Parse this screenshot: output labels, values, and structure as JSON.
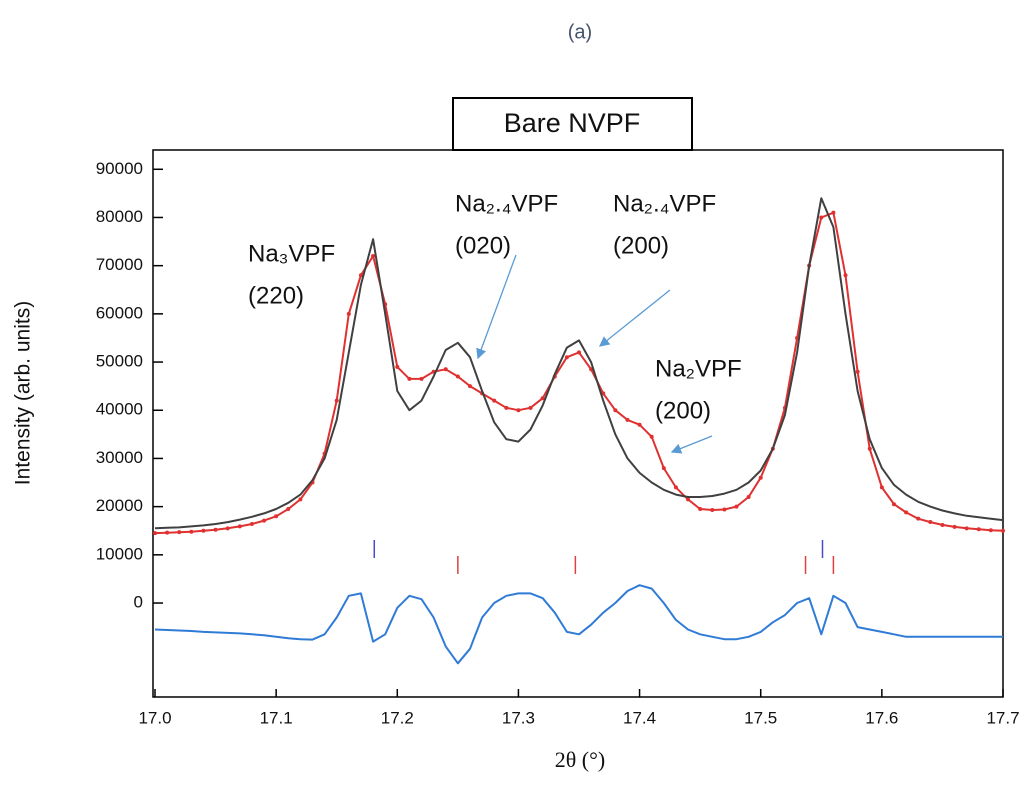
{
  "chart_data": {
    "type": "line",
    "heading": "(a)",
    "title": "Bare NVPF",
    "xlabel": "2θ (°)",
    "ylabel": "Intensity (arb. units)",
    "xlim": [
      17.0,
      17.7
    ],
    "ylim": [
      -19500,
      94000
    ],
    "xticks": [
      {
        "value": 17.0,
        "label": "17.0"
      },
      17.1,
      17.2,
      17.3,
      17.4,
      17.5,
      17.6,
      17.7
    ],
    "yticks": [
      0,
      10000,
      20000,
      30000,
      40000,
      50000,
      60000,
      70000,
      80000,
      90000
    ],
    "x": [
      17.0,
      17.01,
      17.02,
      17.03,
      17.04,
      17.05,
      17.06,
      17.07,
      17.08,
      17.09,
      17.1,
      17.11,
      17.12,
      17.13,
      17.14,
      17.15,
      17.16,
      17.17,
      17.18,
      17.19,
      17.2,
      17.21,
      17.22,
      17.23,
      17.24,
      17.25,
      17.26,
      17.27,
      17.28,
      17.29,
      17.3,
      17.31,
      17.32,
      17.33,
      17.34,
      17.35,
      17.36,
      17.37,
      17.38,
      17.39,
      17.4,
      17.41,
      17.42,
      17.43,
      17.44,
      17.45,
      17.46,
      17.47,
      17.48,
      17.49,
      17.5,
      17.51,
      17.52,
      17.53,
      17.54,
      17.55,
      17.56,
      17.57,
      17.58,
      17.59,
      17.6,
      17.61,
      17.62,
      17.63,
      17.64,
      17.65,
      17.66,
      17.67,
      17.68,
      17.69,
      17.7
    ],
    "series": [
      {
        "color": "#e03030",
        "markers": true,
        "values": [
          14500,
          14600,
          14700,
          14800,
          15000,
          15200,
          15500,
          15900,
          16400,
          17100,
          18000,
          19500,
          21500,
          25000,
          31000,
          42000,
          60000,
          68000,
          72000,
          62000,
          49000,
          46500,
          46500,
          48000,
          48500,
          47000,
          45000,
          43500,
          42000,
          40500,
          40000,
          40500,
          42500,
          47000,
          51000,
          52000,
          48500,
          43500,
          40000,
          38000,
          37000,
          34500,
          28000,
          24000,
          21500,
          19500,
          19300,
          19400,
          20000,
          22000,
          26000,
          32000,
          40500,
          55000,
          70000,
          80000,
          81000,
          68000,
          48000,
          32000,
          24000,
          20500,
          18800,
          17500,
          16800,
          16200,
          15800,
          15500,
          15300,
          15100,
          15000
        ]
      },
      {
        "color": "#404040",
        "markers": false,
        "values": [
          15500,
          15600,
          15700,
          15900,
          16100,
          16400,
          16800,
          17300,
          17900,
          18600,
          19500,
          20800,
          22500,
          25500,
          30000,
          38000,
          52000,
          66000,
          75500,
          60000,
          44000,
          40000,
          42000,
          47000,
          52500,
          54000,
          51000,
          44000,
          37500,
          34000,
          33500,
          36000,
          41000,
          47500,
          53000,
          54500,
          50000,
          42000,
          35000,
          30000,
          27000,
          25000,
          23500,
          22500,
          22000,
          22000,
          22200,
          22700,
          23500,
          25000,
          27500,
          32000,
          39000,
          52000,
          70000,
          84000,
          78000,
          60000,
          44000,
          34000,
          28000,
          24500,
          22500,
          21000,
          20000,
          19200,
          18600,
          18100,
          17800,
          17500,
          17200
        ]
      },
      {
        "color": "#2f7bd6",
        "markers": false,
        "values": [
          -5500,
          -5600,
          -5700,
          -5800,
          -6000,
          -6100,
          -6200,
          -6300,
          -6500,
          -6700,
          -7000,
          -7300,
          -7500,
          -7600,
          -6500,
          -3000,
          1500,
          2000,
          -8000,
          -6500,
          -1000,
          1500,
          800,
          -3000,
          -9000,
          -12500,
          -9500,
          -3000,
          0,
          1500,
          2000,
          2000,
          1000,
          -2000,
          -6000,
          -6500,
          -4500,
          -2000,
          0,
          2500,
          3700,
          3000,
          0,
          -3500,
          -5500,
          -6500,
          -7000,
          -7500,
          -7500,
          -7000,
          -6000,
          -4000,
          -2500,
          0,
          1000,
          -6500,
          1500,
          0,
          -5000,
          -5500,
          -6000,
          -6500,
          -7000,
          -7000,
          -7000,
          -7000,
          -7000,
          -7000,
          -7000,
          -7000,
          -7000
        ]
      }
    ],
    "reflection_ticks": [
      {
        "color": "#4a4ad0",
        "x": [
          17.181,
          17.551
        ]
      },
      {
        "color": "#e04040",
        "x": [
          17.25,
          17.347,
          17.537,
          17.56
        ]
      }
    ],
    "annotations": [
      {
        "lines": [
          "Na₃VPF",
          "(220)"
        ]
      },
      {
        "lines": [
          "Na₂.₄VPF",
          "(020)"
        ]
      },
      {
        "lines": [
          "Na₂.₄VPF",
          "(200)"
        ]
      },
      {
        "lines": [
          "Na₂VPF",
          "(200)"
        ]
      }
    ]
  }
}
